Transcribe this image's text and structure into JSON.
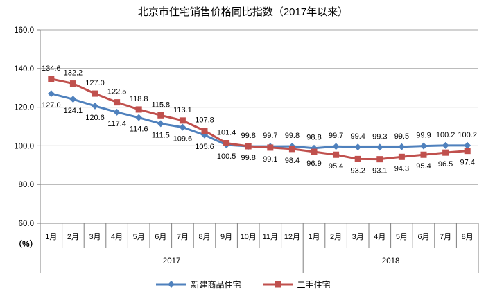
{
  "title": "北京市住宅销售价格同比指数（2017年以来）",
  "y_axis": {
    "unit_label": "（%）",
    "tick_labels": [
      "160.0",
      "140.0",
      "120.0",
      "100.0",
      "80.0",
      "60.0"
    ],
    "min": 60,
    "max": 160,
    "step": 20
  },
  "x_axis": {
    "year_groups": [
      {
        "year": "2017",
        "months": [
          "1月",
          "2月",
          "3月",
          "4月",
          "5月",
          "6月",
          "7月",
          "8月",
          "9月",
          "10月",
          "11月",
          "12月"
        ]
      },
      {
        "year": "2018",
        "months": [
          "1月",
          "2月",
          "3月",
          "4月",
          "5月",
          "6月",
          "7月",
          "8月"
        ]
      }
    ]
  },
  "legend": {
    "items": [
      {
        "label": "新建商品住宅",
        "color": "#4F81BD",
        "marker": "diamond"
      },
      {
        "label": "二手住宅",
        "color": "#C0504D",
        "marker": "square"
      }
    ]
  },
  "colors": {
    "series_new_homes": "#4F81BD",
    "series_secondhand": "#C0504D",
    "gridline": "#A6A6A6",
    "axis": "#808080",
    "label_text": "#000000"
  },
  "chart_data": {
    "type": "line",
    "title": "北京市住宅销售价格同比指数（2017年以来）",
    "categories": [
      "1月",
      "2月",
      "3月",
      "4月",
      "5月",
      "6月",
      "7月",
      "8月",
      "9月",
      "10月",
      "11月",
      "12月",
      "1月",
      "2月",
      "3月",
      "4月",
      "5月",
      "6月",
      "7月",
      "8月"
    ],
    "x_groups": [
      {
        "label": "2017",
        "count": 12
      },
      {
        "label": "2018",
        "count": 8
      }
    ],
    "series": [
      {
        "name": "新建商品住宅",
        "color": "#4F81BD",
        "marker": "diamond",
        "values": [
          127.0,
          124.1,
          120.6,
          117.4,
          114.6,
          111.5,
          109.6,
          105.6,
          100.5,
          99.8,
          99.7,
          99.8,
          98.8,
          99.7,
          99.4,
          99.3,
          99.5,
          99.9,
          100.2,
          100.2
        ]
      },
      {
        "name": "二手住宅",
        "color": "#C0504D",
        "marker": "square",
        "values": [
          134.6,
          132.2,
          127.0,
          122.5,
          118.8,
          115.8,
          113.1,
          107.8,
          101.4,
          99.8,
          99.1,
          98.4,
          96.9,
          95.4,
          93.2,
          93.1,
          94.3,
          95.4,
          96.5,
          97.4
        ]
      }
    ],
    "ylabel": "（%）",
    "ylim": [
      60,
      160
    ],
    "ytick_step": 20,
    "grid": "horizontal-only",
    "legend_position": "bottom",
    "data_labels": "every point, one decimal; higher series labeled above points, lower series below"
  }
}
